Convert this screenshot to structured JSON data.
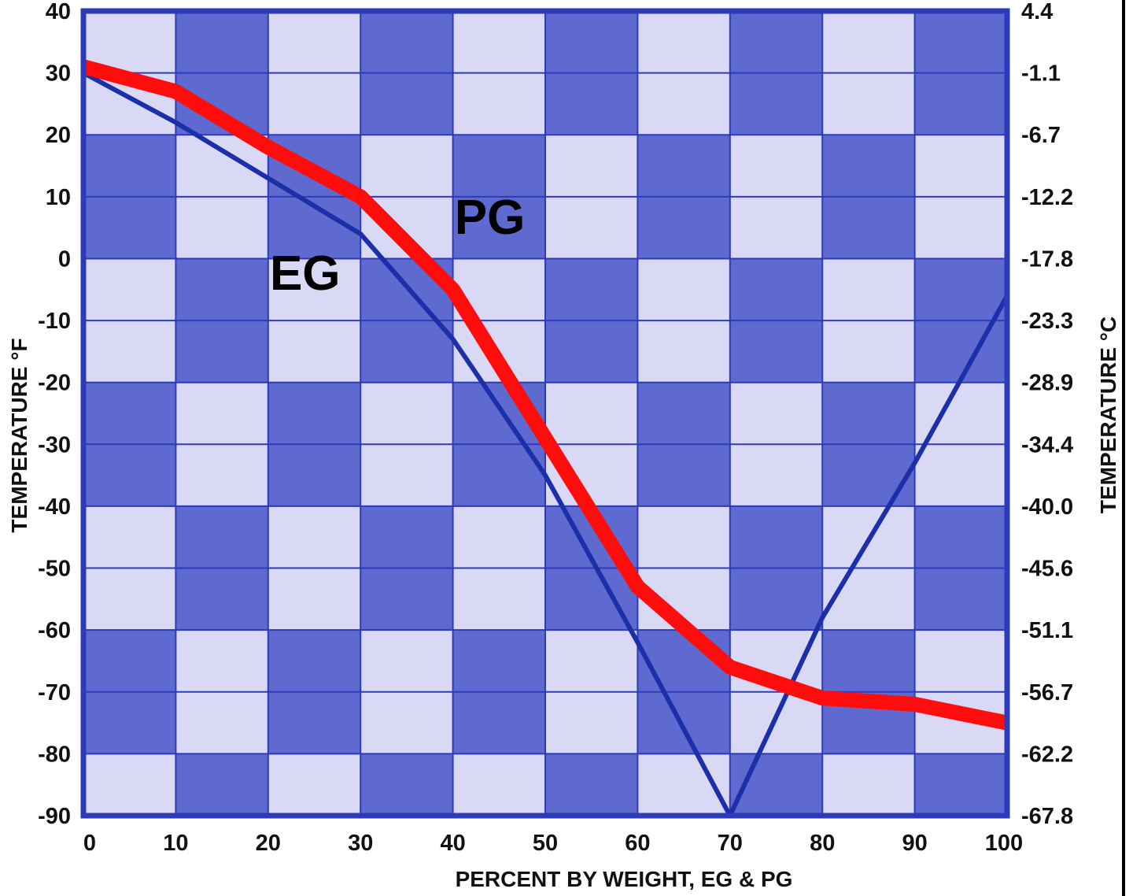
{
  "chart_data": {
    "type": "line",
    "xlabel": "PERCENT BY WEIGHT, EG & PG",
    "ylabel_left": "TEMPERATURE °F",
    "ylabel_right": "TEMPERATURE °C",
    "xlim": [
      0,
      100
    ],
    "ylim": [
      -90,
      40
    ],
    "x_ticks": [
      "0",
      "10",
      "20",
      "30",
      "40",
      "50",
      "60",
      "70",
      "80",
      "90",
      "100"
    ],
    "y_ticks_left": [
      "40",
      "30",
      "20",
      "10",
      "0",
      "-10",
      "-20",
      "-30",
      "-40",
      "-50",
      "-60",
      "-70",
      "-80",
      "-90"
    ],
    "y_ticks_right": [
      "4.4",
      "-1.1",
      "-6.7",
      "-12.2",
      "-17.8",
      "-23.3",
      "-28.9",
      "-34.4",
      "-40.0",
      "-45.6",
      "-51.1",
      "-56.7",
      "-62.2",
      "-67.8"
    ],
    "grid": true,
    "background_colors": {
      "dark": "#5f6ad0",
      "light": "#d9d8f5",
      "frame": "#2d3bb8"
    },
    "series": [
      {
        "name": "EG",
        "color": "#1a2fa8",
        "x": [
          0,
          10,
          20,
          30,
          40,
          50,
          60,
          70,
          80,
          90,
          100
        ],
        "y": [
          30,
          22,
          13,
          4,
          -13,
          -35,
          -62,
          -90,
          -58,
          -33,
          -6
        ]
      },
      {
        "name": "PG",
        "color": "#ff0d0d",
        "x": [
          0,
          10,
          20,
          30,
          40,
          50,
          60,
          70,
          80,
          90,
          100
        ],
        "y": [
          31,
          27,
          18,
          10,
          -5,
          -29,
          -53,
          -66,
          -71,
          -72,
          -75
        ]
      }
    ],
    "annotations": [
      {
        "text": "EG",
        "x": 24,
        "y": -5
      },
      {
        "text": "PG",
        "x": 44,
        "y": 4
      }
    ]
  }
}
